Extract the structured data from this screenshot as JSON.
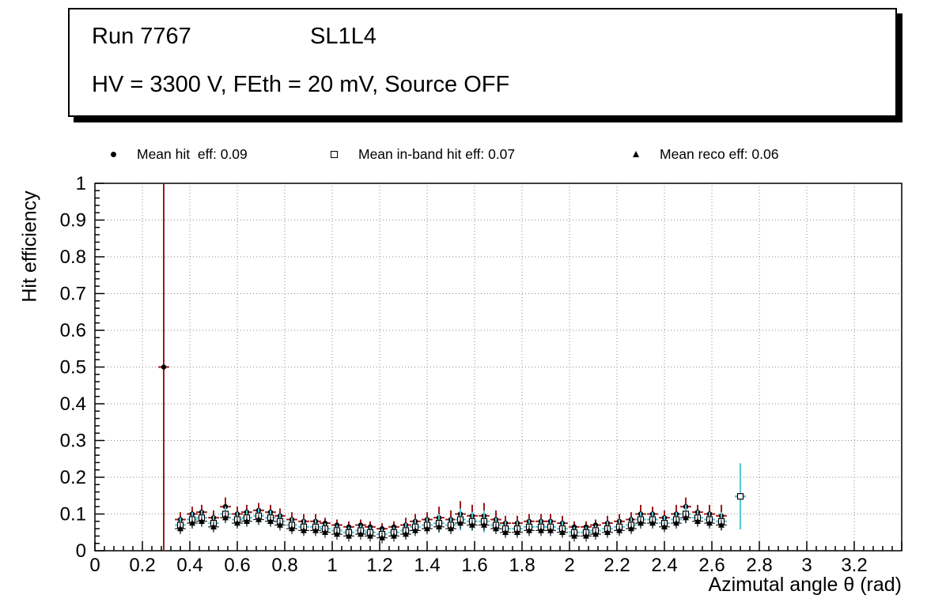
{
  "title_box": {
    "line1_left": "Run 7767",
    "line1_right": "SL1L4",
    "line2": "HV = 3300 V, FEth = 20 mV, Source OFF"
  },
  "legend": {
    "entries": [
      {
        "marker": "filled-circle-icon",
        "label": "Mean hit  eff: 0.09"
      },
      {
        "marker": "open-square-icon",
        "label": "Mean in-band hit eff: 0.07"
      },
      {
        "marker": "filled-triangle-icon",
        "label": "Mean reco eff: 0.06"
      }
    ]
  },
  "colors": {
    "hit_error": "#9e1a1a",
    "inband_error": "#58c5d8",
    "reco_error": "#1a1a1a",
    "marker": "#000000",
    "grid": "#8a8a8a",
    "frame": "#000000"
  },
  "chart_data": {
    "type": "scatter",
    "xlabel": "Azimutal angle θ (rad)",
    "ylabel": "Hit efficiency",
    "xlim": [
      0,
      3.4
    ],
    "ylim": [
      0,
      1
    ],
    "grid": true,
    "legend_position": "top",
    "x_ticks": [
      0,
      0.2,
      0.4,
      0.6,
      0.8,
      1,
      1.2,
      1.4,
      1.6,
      1.8,
      2,
      2.2,
      2.4,
      2.6,
      2.8,
      3,
      3.2
    ],
    "y_ticks": [
      0,
      0.1,
      0.2,
      0.3,
      0.4,
      0.5,
      0.6,
      0.7,
      0.8,
      0.9,
      1
    ],
    "series": [
      {
        "id": "hit",
        "name": "Mean hit eff",
        "mean": 0.09,
        "marker": "filled-circle",
        "marker_color": "#000000",
        "error_color": "#9e1a1a",
        "lw": 2,
        "ex": 0.023,
        "x": [
          0.29,
          0.36,
          0.41,
          0.45,
          0.5,
          0.55,
          0.6,
          0.64,
          0.69,
          0.74,
          0.78,
          0.83,
          0.88,
          0.93,
          0.97,
          1.02,
          1.07,
          1.12,
          1.16,
          1.21,
          1.26,
          1.31,
          1.35,
          1.4,
          1.45,
          1.5,
          1.54,
          1.59,
          1.64,
          1.69,
          1.73,
          1.78,
          1.83,
          1.88,
          1.92,
          1.97,
          2.02,
          2.07,
          2.11,
          2.16,
          2.21,
          2.26,
          2.3,
          2.35,
          2.4,
          2.45,
          2.49,
          2.54,
          2.59,
          2.64,
          2.72
        ],
        "y": [
          0.5,
          0.085,
          0.1,
          0.105,
          0.09,
          0.12,
          0.1,
          0.105,
          0.11,
          0.105,
          0.095,
          0.085,
          0.08,
          0.08,
          0.075,
          0.07,
          0.065,
          0.07,
          0.065,
          0.06,
          0.065,
          0.07,
          0.08,
          0.085,
          0.09,
          0.085,
          0.1,
          0.095,
          0.095,
          0.085,
          0.075,
          0.075,
          0.08,
          0.08,
          0.08,
          0.075,
          0.065,
          0.065,
          0.07,
          0.075,
          0.08,
          0.085,
          0.1,
          0.1,
          0.09,
          0.1,
          0.12,
          0.105,
          0.1,
          0.095,
          0.148
        ],
        "ey": [
          0.5,
          0.02,
          0.02,
          0.02,
          0.02,
          0.025,
          0.02,
          0.02,
          0.02,
          0.02,
          0.02,
          0.02,
          0.02,
          0.02,
          0.015,
          0.015,
          0.015,
          0.015,
          0.015,
          0.015,
          0.015,
          0.02,
          0.02,
          0.02,
          0.03,
          0.025,
          0.035,
          0.03,
          0.035,
          0.025,
          0.02,
          0.02,
          0.02,
          0.02,
          0.02,
          0.02,
          0.015,
          0.015,
          0.015,
          0.02,
          0.02,
          0.02,
          0.025,
          0.02,
          0.02,
          0.025,
          0.025,
          0.02,
          0.025,
          0.03,
          0.03
        ]
      },
      {
        "id": "inband",
        "name": "Mean in-band hit eff",
        "mean": 0.07,
        "marker": "open-square",
        "marker_color": "#000000",
        "error_color": "#58c5d8",
        "lw": 2,
        "ex": 0.023,
        "x": [
          0.36,
          0.41,
          0.45,
          0.5,
          0.55,
          0.6,
          0.64,
          0.69,
          0.74,
          0.78,
          0.83,
          0.88,
          0.93,
          0.97,
          1.02,
          1.07,
          1.12,
          1.16,
          1.21,
          1.26,
          1.31,
          1.35,
          1.4,
          1.45,
          1.5,
          1.54,
          1.59,
          1.64,
          1.69,
          1.73,
          1.78,
          1.83,
          1.88,
          1.92,
          1.97,
          2.02,
          2.07,
          2.11,
          2.16,
          2.21,
          2.26,
          2.3,
          2.35,
          2.4,
          2.45,
          2.49,
          2.54,
          2.59,
          2.64,
          2.72
        ],
        "y": [
          0.07,
          0.085,
          0.09,
          0.075,
          0.1,
          0.085,
          0.09,
          0.095,
          0.09,
          0.08,
          0.07,
          0.065,
          0.065,
          0.06,
          0.055,
          0.05,
          0.055,
          0.05,
          0.045,
          0.05,
          0.055,
          0.065,
          0.07,
          0.075,
          0.07,
          0.085,
          0.08,
          0.08,
          0.07,
          0.06,
          0.06,
          0.065,
          0.065,
          0.065,
          0.06,
          0.05,
          0.05,
          0.055,
          0.06,
          0.065,
          0.07,
          0.085,
          0.085,
          0.075,
          0.085,
          0.1,
          0.09,
          0.085,
          0.08,
          0.148
        ],
        "ey": [
          0.02,
          0.02,
          0.02,
          0.02,
          0.02,
          0.02,
          0.02,
          0.02,
          0.02,
          0.02,
          0.02,
          0.02,
          0.02,
          0.015,
          0.015,
          0.015,
          0.015,
          0.015,
          0.015,
          0.015,
          0.02,
          0.02,
          0.02,
          0.025,
          0.02,
          0.03,
          0.025,
          0.03,
          0.02,
          0.02,
          0.02,
          0.02,
          0.02,
          0.02,
          0.02,
          0.015,
          0.015,
          0.015,
          0.02,
          0.02,
          0.02,
          0.02,
          0.02,
          0.02,
          0.02,
          0.025,
          0.02,
          0.02,
          0.025,
          0.09
        ]
      },
      {
        "id": "reco",
        "name": "Mean reco eff",
        "mean": 0.06,
        "marker": "filled-triangle",
        "marker_color": "#000000",
        "error_color": "#1a1a1a",
        "lw": 1.2,
        "ex": 0.023,
        "x": [
          0.36,
          0.41,
          0.45,
          0.5,
          0.55,
          0.6,
          0.64,
          0.69,
          0.74,
          0.78,
          0.83,
          0.88,
          0.93,
          0.97,
          1.02,
          1.07,
          1.12,
          1.16,
          1.21,
          1.26,
          1.31,
          1.35,
          1.4,
          1.45,
          1.5,
          1.54,
          1.59,
          1.64,
          1.69,
          1.73,
          1.78,
          1.83,
          1.88,
          1.92,
          1.97,
          2.02,
          2.07,
          2.11,
          2.16,
          2.21,
          2.26,
          2.3,
          2.35,
          2.4,
          2.45,
          2.49,
          2.54,
          2.59,
          2.64
        ],
        "y": [
          0.06,
          0.075,
          0.08,
          0.065,
          0.09,
          0.075,
          0.08,
          0.085,
          0.08,
          0.07,
          0.06,
          0.055,
          0.055,
          0.05,
          0.045,
          0.04,
          0.045,
          0.04,
          0.035,
          0.04,
          0.045,
          0.055,
          0.06,
          0.065,
          0.06,
          0.075,
          0.07,
          0.07,
          0.06,
          0.05,
          0.05,
          0.055,
          0.055,
          0.055,
          0.05,
          0.04,
          0.04,
          0.045,
          0.05,
          0.055,
          0.06,
          0.075,
          0.075,
          0.065,
          0.075,
          0.09,
          0.08,
          0.075,
          0.07
        ],
        "ey": 0.015
      }
    ]
  }
}
